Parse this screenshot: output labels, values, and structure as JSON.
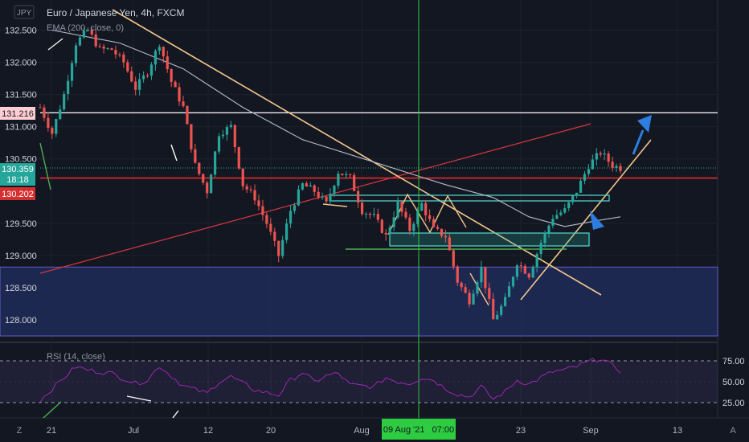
{
  "header": {
    "symbol_badge": "JPY",
    "title": "Euro / Japanese Yen, 4h, FXCM",
    "ema_label": "EMA (200, close, 0)",
    "rsi_label": "RSI (14, close)"
  },
  "price_badges": {
    "resistance": "131.216",
    "last": "130.359",
    "countdown": "18:18",
    "support": "130.202"
  },
  "crosshair_label": "09 Aug '21   07:00",
  "bottom_badges": {
    "left": "Z",
    "right": "A"
  },
  "colors": {
    "background": "#131722",
    "up_candle": "#26a69a",
    "down_candle": "#ef5350",
    "trendline": "#f3c68a",
    "support_line": "#e02b2b",
    "resistance_line": "#ffffff",
    "ema": "#b5bcc9",
    "rsi": "#9c27b0",
    "zone": "#1e2b58",
    "crosshair": "#2ecc40",
    "arrow": "#2d7ee0"
  },
  "chart_data": {
    "type": "candlestick",
    "x_ticks": [
      "21",
      "Jul",
      "12",
      "20",
      "Aug",
      "23",
      "Sep",
      "13"
    ],
    "y_ticks": [
      "132.500",
      "132.000",
      "131.500",
      "131.000",
      "130.500",
      "129.500",
      "129.000",
      "128.500",
      "128.000"
    ],
    "ylim": [
      127.8,
      132.7
    ],
    "rsi_ticks": [
      "75.00",
      "50.00",
      "25.00"
    ],
    "rsi_ylim": [
      15,
      85
    ],
    "levels": {
      "resistance": 131.216,
      "support": 130.202,
      "last": 130.359
    },
    "zone": [
      127.75,
      128.82
    ],
    "price_path": [
      [
        0,
        131.3
      ],
      [
        3,
        130.9
      ],
      [
        6,
        131.5
      ],
      [
        9,
        132.3
      ],
      [
        12,
        132.5
      ],
      [
        15,
        132.2
      ],
      [
        18,
        132.2
      ],
      [
        21,
        132.0
      ],
      [
        24,
        131.6
      ],
      [
        27,
        131.85
      ],
      [
        30,
        132.3
      ],
      [
        33,
        131.7
      ],
      [
        36,
        131.3
      ],
      [
        39,
        130.4
      ],
      [
        42,
        130.0
      ],
      [
        45,
        130.9
      ],
      [
        48,
        131.0
      ],
      [
        51,
        130.1
      ],
      [
        54,
        129.9
      ],
      [
        57,
        129.5
      ],
      [
        60,
        129.0
      ],
      [
        63,
        129.7
      ],
      [
        66,
        130.1
      ],
      [
        69,
        130.0
      ],
      [
        72,
        129.8
      ],
      [
        75,
        130.3
      ],
      [
        78,
        130.2
      ],
      [
        81,
        129.7
      ],
      [
        84,
        129.6
      ],
      [
        87,
        129.3
      ],
      [
        90,
        129.8
      ],
      [
        93,
        129.4
      ],
      [
        96,
        129.8
      ],
      [
        99,
        129.4
      ],
      [
        102,
        129.3
      ],
      [
        105,
        128.6
      ],
      [
        108,
        128.3
      ],
      [
        111,
        128.8
      ],
      [
        114,
        128.0
      ],
      [
        117,
        128.3
      ],
      [
        120,
        128.9
      ],
      [
        123,
        128.7
      ],
      [
        126,
        129.2
      ],
      [
        129,
        129.6
      ],
      [
        132,
        129.7
      ],
      [
        135,
        130.0
      ],
      [
        138,
        130.4
      ],
      [
        141,
        130.6
      ],
      [
        144,
        130.4
      ],
      [
        146,
        130.36
      ]
    ],
    "ema_path": [
      [
        3,
        132.5
      ],
      [
        20,
        132.3
      ],
      [
        36,
        131.9
      ],
      [
        51,
        131.3
      ],
      [
        66,
        130.8
      ],
      [
        84,
        130.45
      ],
      [
        102,
        130.1
      ],
      [
        114,
        129.9
      ],
      [
        123,
        129.6
      ],
      [
        132,
        129.45
      ],
      [
        141,
        129.55
      ],
      [
        146,
        129.6
      ]
    ],
    "rsi_path": [
      [
        0,
        28
      ],
      [
        6,
        55
      ],
      [
        9,
        68
      ],
      [
        12,
        64
      ],
      [
        18,
        60
      ],
      [
        24,
        48
      ],
      [
        27,
        52
      ],
      [
        30,
        69
      ],
      [
        36,
        45
      ],
      [
        42,
        36
      ],
      [
        45,
        50
      ],
      [
        48,
        56
      ],
      [
        54,
        40
      ],
      [
        60,
        34
      ],
      [
        63,
        52
      ],
      [
        66,
        61
      ],
      [
        69,
        50
      ],
      [
        72,
        57
      ],
      [
        75,
        60
      ],
      [
        78,
        46
      ],
      [
        81,
        45
      ],
      [
        84,
        44
      ],
      [
        87,
        55
      ],
      [
        90,
        50
      ],
      [
        93,
        48
      ],
      [
        96,
        55
      ],
      [
        99,
        52
      ],
      [
        102,
        42
      ],
      [
        105,
        35
      ],
      [
        108,
        32
      ],
      [
        111,
        44
      ],
      [
        114,
        29
      ],
      [
        117,
        38
      ],
      [
        120,
        52
      ],
      [
        123,
        47
      ],
      [
        126,
        55
      ],
      [
        129,
        62
      ],
      [
        132,
        64
      ],
      [
        135,
        68
      ],
      [
        138,
        74
      ],
      [
        141,
        78
      ],
      [
        143,
        72
      ],
      [
        146,
        63
      ]
    ]
  }
}
